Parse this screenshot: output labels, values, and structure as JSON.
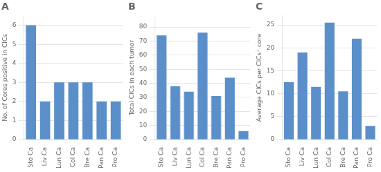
{
  "chart_data": [
    {
      "type": "bar",
      "title": "A",
      "categories": [
        "Sto Ca",
        "Liv Ca",
        "Lun Ca",
        "Col Ca",
        "Bre Ca",
        "Pan Ca",
        "Pro Ca"
      ],
      "values": [
        6,
        2,
        3,
        3,
        3,
        2,
        2
      ],
      "ylabel": "No. of Cores positive in CICs",
      "ylim": [
        0,
        6.5
      ],
      "yticks": [
        0,
        1,
        2,
        3,
        4,
        5,
        6
      ],
      "color": "#5b8fca",
      "grid": true
    },
    {
      "type": "bar",
      "title": "B",
      "categories": [
        "Sto Ca",
        "Liv Ca",
        "Lun Ca",
        "Col Ca",
        "Bre Ca",
        "Pan Ca",
        "Pro Ca"
      ],
      "values": [
        74,
        38,
        34,
        76,
        31,
        44,
        6
      ],
      "ylabel": "Total CICs in each tumor",
      "ylim": [
        0,
        88
      ],
      "yticks": [
        0,
        10,
        20,
        30,
        40,
        50,
        60,
        70,
        80
      ],
      "color": "#5b8fca",
      "grid": true
    },
    {
      "type": "bar",
      "title": "C",
      "categories": [
        "Sto Ca",
        "Liv Ca",
        "Lun Ca",
        "Col Ca",
        "Bre Ca",
        "Pan Ca",
        "Pro Ca"
      ],
      "values": [
        12.5,
        19,
        11.5,
        25.5,
        10.5,
        22,
        3
      ],
      "ylabel": "Average CICs per CICs⁺ core",
      "ylim": [
        0,
        27
      ],
      "yticks": [
        0,
        5,
        10,
        15,
        20,
        25
      ],
      "color": "#5b8fca",
      "grid": true
    }
  ]
}
